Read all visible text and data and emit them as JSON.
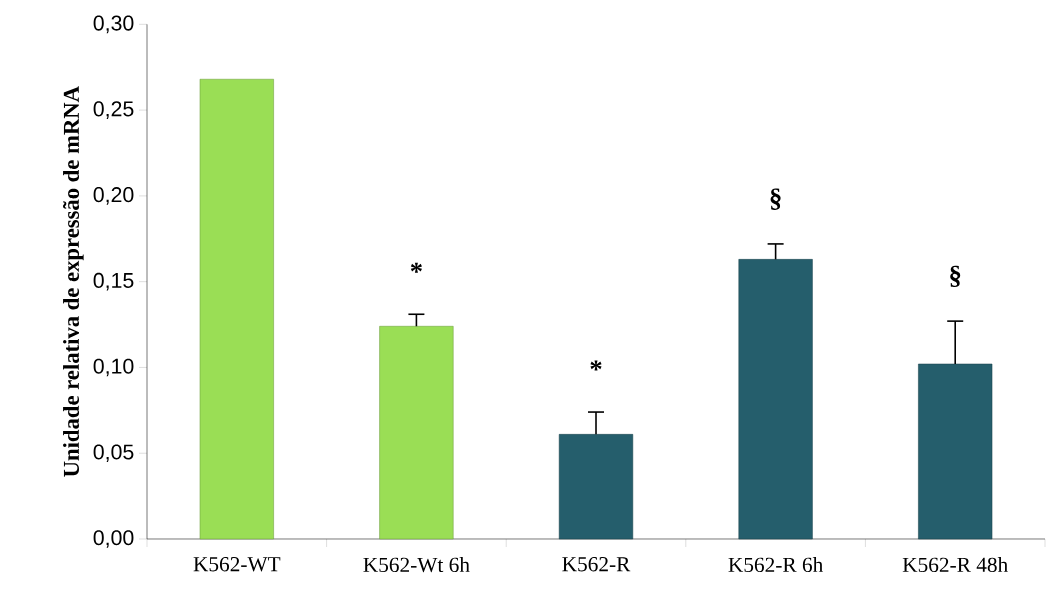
{
  "chart_data": {
    "type": "bar",
    "ylabel": "Unidade relativa de expressão de mRNA",
    "categories": [
      "K562-WT",
      "K562-Wt 6h",
      "K562-R",
      "K562-R 6h",
      "K562-R 48h"
    ],
    "values": [
      0.268,
      0.124,
      0.061,
      0.163,
      0.102
    ],
    "colors": [
      "#9ade55",
      "#9ade55",
      "#255e6c",
      "#255e6c",
      "#255e6c"
    ],
    "errors": [
      null,
      [
        0.124,
        0.131
      ],
      [
        0.061,
        0.074
      ],
      [
        0.163,
        0.172
      ],
      [
        0.102,
        0.127
      ]
    ],
    "ylim": [
      0,
      0.3
    ],
    "yticks": [
      {
        "value": 0,
        "label": "0,00"
      },
      {
        "value": 0.05,
        "label": "0,05"
      },
      {
        "value": 0.1,
        "label": "0,10"
      },
      {
        "value": 0.15,
        "label": "0,15"
      },
      {
        "value": 0.2,
        "label": "0,20"
      },
      {
        "value": 0.25,
        "label": "0,25"
      },
      {
        "value": 0.3,
        "label": "0,30"
      }
    ],
    "annotations": [
      "*",
      "*",
      "§",
      "§"
    ],
    "grid": false
  }
}
